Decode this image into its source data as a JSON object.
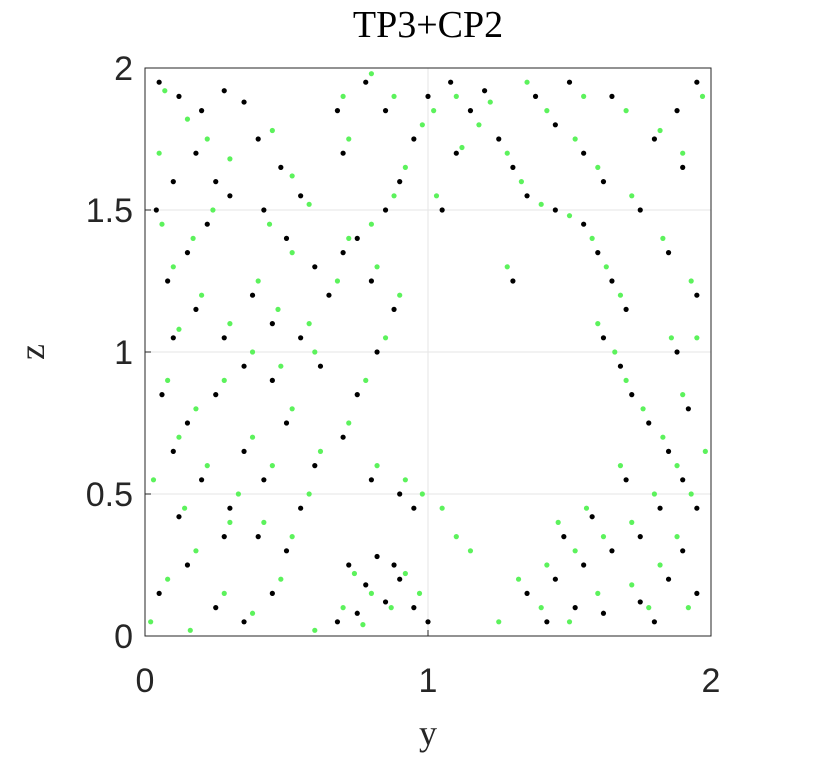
{
  "chart_data": {
    "type": "scatter",
    "title": "TP3+CP2",
    "xlabel": "y",
    "ylabel": "z",
    "xlim": [
      0,
      2
    ],
    "ylim": [
      0,
      2
    ],
    "xticks": [
      0,
      1,
      2
    ],
    "yticks": [
      0,
      0.5,
      1,
      1.5,
      2
    ],
    "xtick_labels": [
      "0",
      "1",
      "2"
    ],
    "ytick_labels": [
      "0",
      "0.5",
      "1",
      "1.5",
      "2"
    ],
    "grid": true,
    "box": true,
    "series": [
      {
        "color": "#000000",
        "marker": "dot",
        "description_of_distribution": "dense particle cloud",
        "points": [
          [
            0.05,
            1.95
          ],
          [
            0.12,
            1.9
          ],
          [
            0.2,
            1.85
          ],
          [
            0.28,
            1.92
          ],
          [
            0.35,
            1.88
          ],
          [
            0.18,
            1.7
          ],
          [
            0.25,
            1.6
          ],
          [
            0.3,
            1.55
          ],
          [
            0.22,
            1.45
          ],
          [
            0.15,
            1.35
          ],
          [
            0.08,
            1.25
          ],
          [
            0.18,
            1.15
          ],
          [
            0.28,
            1.05
          ],
          [
            0.35,
            0.95
          ],
          [
            0.25,
            0.85
          ],
          [
            0.15,
            0.75
          ],
          [
            0.1,
            0.65
          ],
          [
            0.2,
            0.55
          ],
          [
            0.3,
            0.45
          ],
          [
            0.4,
            0.35
          ],
          [
            0.15,
            0.25
          ],
          [
            0.05,
            0.15
          ],
          [
            0.25,
            0.1
          ],
          [
            0.35,
            0.05
          ],
          [
            0.45,
            0.15
          ],
          [
            0.5,
            0.3
          ],
          [
            0.55,
            0.45
          ],
          [
            0.6,
            0.6
          ],
          [
            0.5,
            0.75
          ],
          [
            0.45,
            0.9
          ],
          [
            0.55,
            1.05
          ],
          [
            0.65,
            1.2
          ],
          [
            0.7,
            1.35
          ],
          [
            0.6,
            1.3
          ],
          [
            0.75,
            1.4
          ],
          [
            0.85,
            1.5
          ],
          [
            0.9,
            1.6
          ],
          [
            0.95,
            1.75
          ],
          [
            0.85,
            1.85
          ],
          [
            0.78,
            1.95
          ],
          [
            0.68,
            1.85
          ],
          [
            0.7,
            1.7
          ],
          [
            0.8,
            1.25
          ],
          [
            0.88,
            1.15
          ],
          [
            0.82,
            1.0
          ],
          [
            0.75,
            0.85
          ],
          [
            0.7,
            0.7
          ],
          [
            0.8,
            0.55
          ],
          [
            0.9,
            0.5
          ],
          [
            0.95,
            0.45
          ],
          [
            0.72,
            0.25
          ],
          [
            0.78,
            0.18
          ],
          [
            0.85,
            0.12
          ],
          [
            0.9,
            0.2
          ],
          [
            0.95,
            0.1
          ],
          [
            1.0,
            0.05
          ],
          [
            0.68,
            0.05
          ],
          [
            0.75,
            0.08
          ],
          [
            0.82,
            0.28
          ],
          [
            0.88,
            0.25
          ],
          [
            1.15,
            1.85
          ],
          [
            1.25,
            1.75
          ],
          [
            1.3,
            1.65
          ],
          [
            1.35,
            1.55
          ],
          [
            1.45,
            1.5
          ],
          [
            1.55,
            1.45
          ],
          [
            1.6,
            1.35
          ],
          [
            1.65,
            1.25
          ],
          [
            1.7,
            1.15
          ],
          [
            1.62,
            1.05
          ],
          [
            1.68,
            0.95
          ],
          [
            1.72,
            0.85
          ],
          [
            1.78,
            0.75
          ],
          [
            1.85,
            0.65
          ],
          [
            1.9,
            0.55
          ],
          [
            1.82,
            0.45
          ],
          [
            1.75,
            0.35
          ],
          [
            1.65,
            0.3
          ],
          [
            1.55,
            0.25
          ],
          [
            1.45,
            0.2
          ],
          [
            1.35,
            0.15
          ],
          [
            1.42,
            0.05
          ],
          [
            1.52,
            0.1
          ],
          [
            1.62,
            0.08
          ],
          [
            1.75,
            0.12
          ],
          [
            1.85,
            0.2
          ],
          [
            1.95,
            0.15
          ],
          [
            1.9,
            0.3
          ],
          [
            1.95,
            0.45
          ],
          [
            1.92,
            0.8
          ],
          [
            1.88,
            1.0
          ],
          [
            1.95,
            1.2
          ],
          [
            1.85,
            1.35
          ],
          [
            1.75,
            1.5
          ],
          [
            1.62,
            1.6
          ],
          [
            1.55,
            1.7
          ],
          [
            1.45,
            1.8
          ],
          [
            1.38,
            1.9
          ],
          [
            1.5,
            1.95
          ],
          [
            1.65,
            1.9
          ],
          [
            1.8,
            1.75
          ],
          [
            1.88,
            1.85
          ],
          [
            1.95,
            1.95
          ],
          [
            1.9,
            1.65
          ],
          [
            0.4,
            1.75
          ],
          [
            0.48,
            1.65
          ],
          [
            0.55,
            1.55
          ],
          [
            0.42,
            1.5
          ],
          [
            0.5,
            1.4
          ],
          [
            0.38,
            1.2
          ],
          [
            0.45,
            1.1
          ],
          [
            0.62,
            0.95
          ],
          [
            0.35,
            0.65
          ],
          [
            0.42,
            0.55
          ],
          [
            0.28,
            0.35
          ],
          [
            0.12,
            0.42
          ],
          [
            0.06,
            0.85
          ],
          [
            0.1,
            1.05
          ],
          [
            0.04,
            1.5
          ],
          [
            0.1,
            1.6
          ],
          [
            1.05,
            1.5
          ],
          [
            1.1,
            1.7
          ],
          [
            1.0,
            1.9
          ],
          [
            1.08,
            1.95
          ],
          [
            1.2,
            1.92
          ],
          [
            1.3,
            1.25
          ],
          [
            1.48,
            0.35
          ],
          [
            1.58,
            0.42
          ],
          [
            1.7,
            0.55
          ],
          [
            1.8,
            0.05
          ]
        ]
      },
      {
        "color": "#5cf25c",
        "marker": "dot",
        "description_of_distribution": "dense particle cloud",
        "points": [
          [
            0.07,
            1.92
          ],
          [
            0.15,
            1.82
          ],
          [
            0.22,
            1.75
          ],
          [
            0.3,
            1.68
          ],
          [
            0.24,
            1.5
          ],
          [
            0.17,
            1.4
          ],
          [
            0.1,
            1.3
          ],
          [
            0.2,
            1.2
          ],
          [
            0.3,
            1.1
          ],
          [
            0.38,
            1.0
          ],
          [
            0.28,
            0.9
          ],
          [
            0.18,
            0.8
          ],
          [
            0.12,
            0.7
          ],
          [
            0.22,
            0.6
          ],
          [
            0.33,
            0.5
          ],
          [
            0.42,
            0.4
          ],
          [
            0.18,
            0.3
          ],
          [
            0.08,
            0.2
          ],
          [
            0.28,
            0.15
          ],
          [
            0.38,
            0.08
          ],
          [
            0.48,
            0.2
          ],
          [
            0.52,
            0.35
          ],
          [
            0.58,
            0.5
          ],
          [
            0.62,
            0.65
          ],
          [
            0.52,
            0.8
          ],
          [
            0.48,
            0.95
          ],
          [
            0.58,
            1.1
          ],
          [
            0.68,
            1.25
          ],
          [
            0.72,
            1.4
          ],
          [
            0.8,
            1.45
          ],
          [
            0.88,
            1.55
          ],
          [
            0.92,
            1.65
          ],
          [
            0.98,
            1.8
          ],
          [
            0.88,
            1.9
          ],
          [
            0.8,
            1.98
          ],
          [
            0.7,
            1.9
          ],
          [
            0.72,
            1.75
          ],
          [
            0.82,
            1.3
          ],
          [
            0.9,
            1.2
          ],
          [
            0.85,
            1.05
          ],
          [
            0.78,
            0.9
          ],
          [
            0.72,
            0.75
          ],
          [
            0.82,
            0.6
          ],
          [
            0.92,
            0.55
          ],
          [
            0.98,
            0.5
          ],
          [
            1.05,
            0.45
          ],
          [
            1.1,
            0.35
          ],
          [
            1.15,
            0.3
          ],
          [
            0.74,
            0.22
          ],
          [
            0.8,
            0.15
          ],
          [
            0.87,
            0.1
          ],
          [
            0.92,
            0.22
          ],
          [
            0.97,
            0.15
          ],
          [
            0.7,
            0.1
          ],
          [
            0.77,
            0.04
          ],
          [
            1.18,
            1.8
          ],
          [
            1.28,
            1.7
          ],
          [
            1.33,
            1.6
          ],
          [
            1.4,
            1.52
          ],
          [
            1.5,
            1.48
          ],
          [
            1.58,
            1.4
          ],
          [
            1.63,
            1.3
          ],
          [
            1.68,
            1.2
          ],
          [
            1.6,
            1.1
          ],
          [
            1.66,
            1.0
          ],
          [
            1.7,
            0.9
          ],
          [
            1.76,
            0.8
          ],
          [
            1.83,
            0.7
          ],
          [
            1.88,
            0.6
          ],
          [
            1.8,
            0.5
          ],
          [
            1.72,
            0.4
          ],
          [
            1.62,
            0.35
          ],
          [
            1.52,
            0.3
          ],
          [
            1.42,
            0.25
          ],
          [
            1.32,
            0.2
          ],
          [
            1.4,
            0.1
          ],
          [
            1.5,
            0.05
          ],
          [
            1.6,
            0.15
          ],
          [
            1.72,
            0.18
          ],
          [
            1.82,
            0.25
          ],
          [
            1.92,
            0.1
          ],
          [
            1.88,
            0.35
          ],
          [
            1.93,
            0.5
          ],
          [
            1.9,
            0.85
          ],
          [
            1.86,
            1.05
          ],
          [
            1.93,
            1.25
          ],
          [
            1.83,
            1.4
          ],
          [
            1.72,
            1.55
          ],
          [
            1.6,
            1.65
          ],
          [
            1.52,
            1.75
          ],
          [
            1.42,
            1.85
          ],
          [
            1.35,
            1.95
          ],
          [
            1.55,
            1.9
          ],
          [
            1.7,
            1.85
          ],
          [
            1.82,
            1.78
          ],
          [
            1.9,
            1.7
          ],
          [
            1.97,
            1.9
          ],
          [
            0.45,
            1.78
          ],
          [
            0.52,
            1.62
          ],
          [
            0.58,
            1.52
          ],
          [
            0.44,
            1.45
          ],
          [
            0.52,
            1.35
          ],
          [
            0.4,
            1.25
          ],
          [
            0.47,
            1.15
          ],
          [
            0.6,
            1.0
          ],
          [
            0.38,
            0.7
          ],
          [
            0.45,
            0.6
          ],
          [
            0.3,
            0.4
          ],
          [
            0.14,
            0.45
          ],
          [
            0.08,
            0.9
          ],
          [
            0.12,
            1.08
          ],
          [
            0.06,
            1.45
          ],
          [
            1.03,
            1.55
          ],
          [
            1.12,
            1.72
          ],
          [
            1.02,
            1.85
          ],
          [
            1.1,
            1.9
          ],
          [
            1.22,
            1.88
          ],
          [
            1.28,
            1.3
          ],
          [
            1.46,
            0.4
          ],
          [
            1.56,
            0.45
          ],
          [
            1.68,
            0.6
          ],
          [
            1.78,
            0.1
          ],
          [
            1.98,
            0.65
          ],
          [
            1.95,
            1.05
          ],
          [
            0.02,
            0.05
          ],
          [
            0.03,
            0.55
          ],
          [
            0.05,
            1.7
          ],
          [
            0.16,
            0.02
          ],
          [
            0.6,
            0.02
          ],
          [
            1.25,
            0.05
          ]
        ]
      }
    ]
  }
}
